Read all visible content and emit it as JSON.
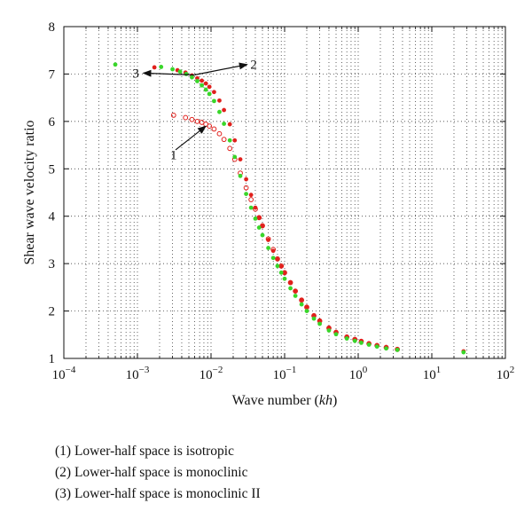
{
  "chart_data": {
    "type": "scatter",
    "xscale": "log",
    "xlim": [
      0.0001,
      100
    ],
    "ylim": [
      1,
      8
    ],
    "grid": true,
    "xlabel_prefix": "Wave number (",
    "xlabel_italic": "kh",
    "xlabel_suffix": ")",
    "ylabel": "Shear wave velocity ratio",
    "xticks": [
      {
        "value": 0.0001,
        "base": "10",
        "exp": "−4"
      },
      {
        "value": 0.001,
        "base": "10",
        "exp": "−3"
      },
      {
        "value": 0.01,
        "base": "10",
        "exp": "−2"
      },
      {
        "value": 0.1,
        "base": "10",
        "exp": "−1"
      },
      {
        "value": 1,
        "base": "10",
        "exp": "0"
      },
      {
        "value": 10,
        "base": "10",
        "exp": "1"
      },
      {
        "value": 100,
        "base": "10",
        "exp": "2"
      }
    ],
    "yticks": [
      {
        "value": 1,
        "label": "1"
      },
      {
        "value": 2,
        "label": "2"
      },
      {
        "value": 3,
        "label": "3"
      },
      {
        "value": 4,
        "label": "4"
      },
      {
        "value": 5,
        "label": "5"
      },
      {
        "value": 6,
        "label": "6"
      },
      {
        "value": 7,
        "label": "7"
      },
      {
        "value": 8,
        "label": "8"
      }
    ],
    "series": [
      {
        "id": "isotropic",
        "color": "#e0201c",
        "marker": "open-circle",
        "x": [
          0.0031,
          0.0045,
          0.0055,
          0.0065,
          0.0075,
          0.0085,
          0.0095,
          0.011,
          0.013,
          0.015,
          0.018,
          0.021,
          0.025,
          0.03,
          0.035,
          0.04,
          0.045,
          0.05,
          0.06,
          0.07,
          0.08,
          0.09,
          0.1,
          0.12,
          0.14,
          0.17,
          0.2,
          0.25,
          0.3,
          0.4,
          0.5,
          0.7,
          0.9,
          1.1,
          1.4,
          1.8,
          2.4,
          3.4
        ],
        "y": [
          6.13,
          6.08,
          6.04,
          6.0,
          5.98,
          5.94,
          5.9,
          5.84,
          5.74,
          5.62,
          5.43,
          5.2,
          4.91,
          4.6,
          4.35,
          4.15,
          3.97,
          3.8,
          3.52,
          3.3,
          3.1,
          2.95,
          2.81,
          2.6,
          2.42,
          2.23,
          2.08,
          1.9,
          1.79,
          1.64,
          1.55,
          1.45,
          1.4,
          1.36,
          1.31,
          1.27,
          1.23,
          1.19
        ]
      },
      {
        "id": "monoclinic",
        "color": "#e0201c",
        "marker": "filled-circle",
        "x": [
          0.0017,
          0.0035,
          0.0045,
          0.0055,
          0.0065,
          0.0075,
          0.0085,
          0.0095,
          0.011,
          0.013,
          0.015,
          0.018,
          0.021,
          0.025,
          0.03,
          0.035,
          0.04,
          0.045,
          0.05,
          0.06,
          0.07,
          0.08,
          0.09,
          0.1,
          0.12,
          0.14,
          0.17,
          0.2,
          0.25,
          0.3,
          0.4,
          0.5,
          0.7,
          0.9,
          1.1,
          1.4,
          1.8,
          2.4,
          3.4,
          27
        ],
        "y": [
          7.14,
          7.08,
          7.03,
          6.97,
          6.91,
          6.86,
          6.8,
          6.73,
          6.62,
          6.44,
          6.24,
          5.94,
          5.6,
          5.2,
          4.78,
          4.45,
          4.18,
          3.97,
          3.79,
          3.5,
          3.27,
          3.09,
          2.94,
          2.8,
          2.6,
          2.42,
          2.24,
          2.09,
          1.91,
          1.8,
          1.65,
          1.56,
          1.46,
          1.41,
          1.37,
          1.32,
          1.28,
          1.24,
          1.2,
          1.15
        ]
      },
      {
        "id": "monoclinic-II",
        "color": "#39d62a",
        "marker": "filled-circle",
        "x": [
          0.0005,
          0.0021,
          0.003,
          0.0038,
          0.0046,
          0.0055,
          0.0065,
          0.0075,
          0.0085,
          0.0095,
          0.011,
          0.013,
          0.015,
          0.018,
          0.021,
          0.025,
          0.03,
          0.035,
          0.04,
          0.045,
          0.05,
          0.06,
          0.07,
          0.08,
          0.09,
          0.1,
          0.12,
          0.14,
          0.17,
          0.2,
          0.25,
          0.3,
          0.4,
          0.5,
          0.7,
          0.9,
          1.1,
          1.4,
          1.8,
          2.4,
          3.4,
          27
        ],
        "y": [
          7.2,
          7.15,
          7.1,
          7.05,
          7.0,
          6.93,
          6.85,
          6.76,
          6.67,
          6.58,
          6.43,
          6.2,
          5.95,
          5.6,
          5.25,
          4.85,
          4.47,
          4.18,
          3.95,
          3.76,
          3.6,
          3.33,
          3.12,
          2.95,
          2.81,
          2.68,
          2.48,
          2.32,
          2.14,
          2.0,
          1.84,
          1.73,
          1.59,
          1.51,
          1.42,
          1.37,
          1.33,
          1.29,
          1.25,
          1.21,
          1.18,
          1.13
        ]
      }
    ],
    "annotations": [
      {
        "text": "1",
        "text_x": 0.0031,
        "text_y": 5.3,
        "arrow_from": [
          0.0033,
          5.4
        ],
        "arrow_to": [
          0.0085,
          5.9
        ]
      },
      {
        "text": "2",
        "text_x": 0.038,
        "text_y": 7.2,
        "arrow_from": [
          0.0059,
          6.98
        ],
        "arrow_to": [
          0.031,
          7.2
        ]
      },
      {
        "text": "3",
        "text_x": 0.00095,
        "text_y": 7.02,
        "arrow_from": [
          0.0059,
          6.98
        ],
        "arrow_to": [
          0.0012,
          7.02
        ]
      }
    ]
  },
  "captions": [
    "(1) Lower-half space is isotropic",
    "(2) Lower-half space is monoclinic",
    "(3) Lower-half space is monoclinic II"
  ]
}
